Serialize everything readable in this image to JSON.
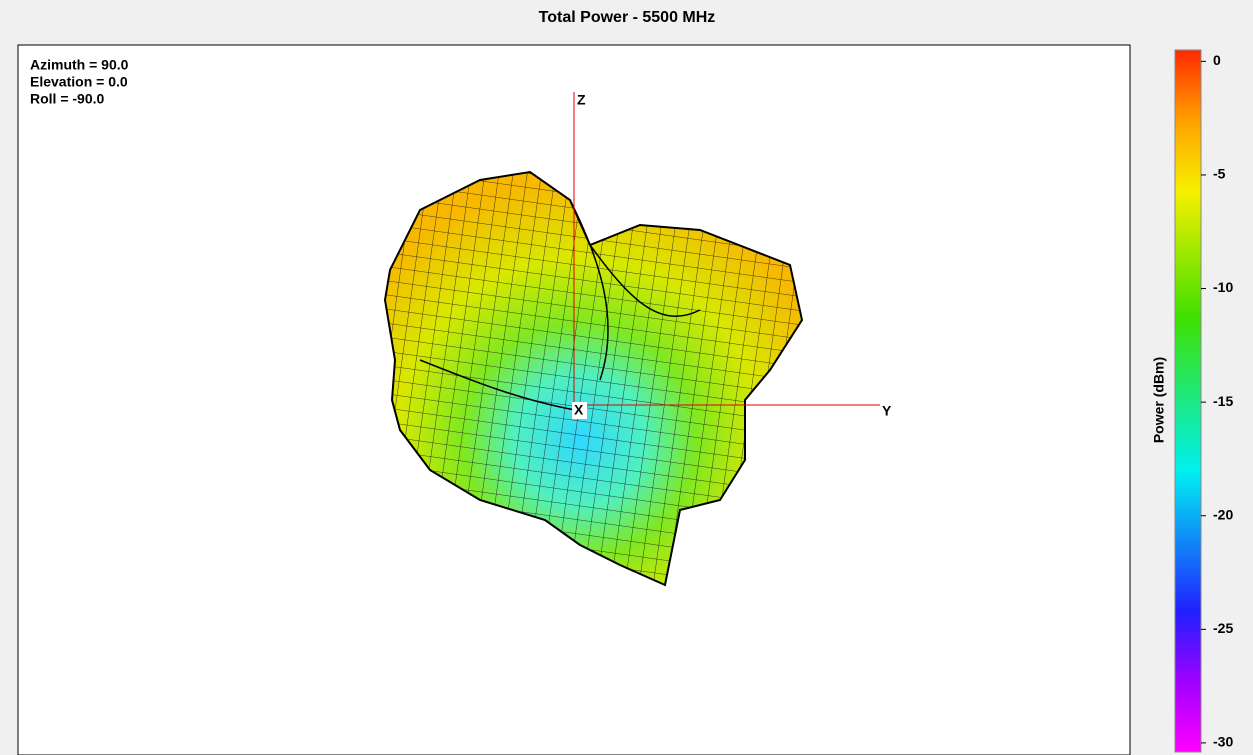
{
  "title": "Total Power - 5500 MHz",
  "view": [
    "Azimuth = 90.0",
    "Elevation = 0.0",
    "Roll = -90.0"
  ],
  "axes_labels": {
    "z": "Z",
    "y": "Y",
    "x": "X"
  },
  "colorbar": {
    "label": "Power  (dBm)",
    "lim": [
      -30.4,
      0.5
    ],
    "ticks": [
      0,
      -5,
      -10,
      -15,
      -20,
      -25,
      -30
    ]
  }
}
